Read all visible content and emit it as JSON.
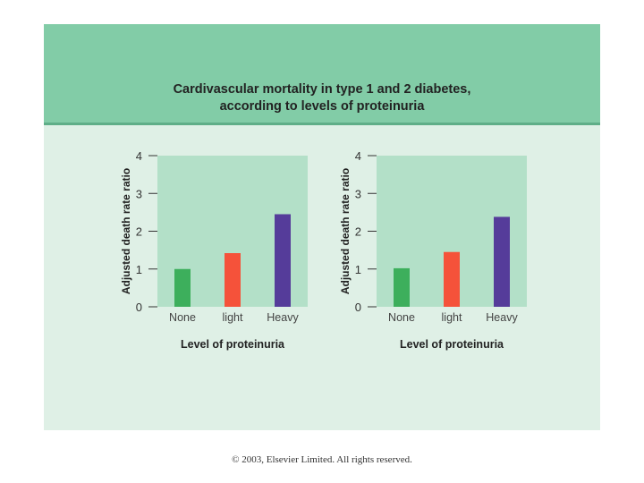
{
  "header": {
    "title_line1": "Cardivascular mortality in type 1 and 2 diabetes,",
    "title_line2": "according to levels of proteinuria"
  },
  "colors": {
    "header_bg": "#82cca7",
    "panel_bg": "#dff0e6",
    "plot_bg": "#b3e0c8",
    "bar_colors": [
      "#3daf5c",
      "#f5523a",
      "#553c9a"
    ]
  },
  "chart_data": [
    {
      "type": "bar",
      "categories": [
        "None",
        "light",
        "Heavy"
      ],
      "values": [
        1.0,
        1.42,
        2.45
      ],
      "xlabel": "Level of proteinuria",
      "ylabel": "Adjusted death rate ratio",
      "ylim": [
        0,
        4
      ],
      "yticks": [
        "0",
        "1",
        "2",
        "3",
        "4"
      ],
      "grid": false
    },
    {
      "type": "bar",
      "categories": [
        "None",
        "light",
        "Heavy"
      ],
      "values": [
        1.02,
        1.45,
        2.38
      ],
      "xlabel": "Level of proteinuria",
      "ylabel": "Adjusted death rate ratio",
      "ylim": [
        0,
        4
      ],
      "yticks": [
        "0",
        "1",
        "2",
        "3",
        "4"
      ],
      "grid": false
    }
  ],
  "footer": {
    "copyright": "© 2003, Elsevier Limited. All rights reserved."
  }
}
